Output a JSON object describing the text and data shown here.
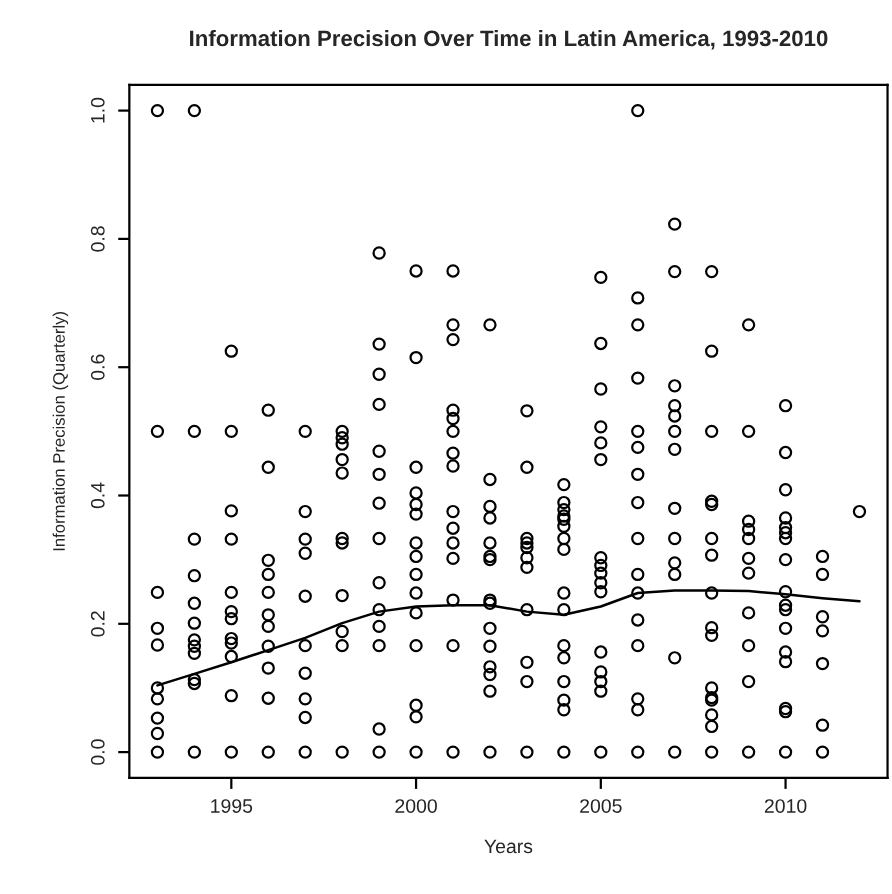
{
  "chart_data": {
    "type": "scatter",
    "title": "Information Precision Over Time in Latin America, 1993-2010",
    "xlabel": "Years",
    "ylabel": "Information Precision (Quarterly)",
    "xlim": [
      1992.24,
      2012.76
    ],
    "ylim": [
      -0.04,
      1.04
    ],
    "xticks": [
      1995,
      2000,
      2005,
      2010
    ],
    "yticks": [
      {
        "value": 0,
        "label": "0.0"
      },
      {
        "value": 0.2,
        "label": "0.2"
      },
      {
        "value": 0.4,
        "label": "0.4"
      },
      {
        "value": 0.6,
        "label": "0.6"
      },
      {
        "value": 0.8,
        "label": "0.8"
      },
      {
        "value": 1.0,
        "label": "1.0"
      }
    ],
    "grid": false,
    "legend": false,
    "series": [
      {
        "marker": "circle",
        "color": "#000000",
        "x": [
          1993,
          1993,
          1993,
          1993,
          1993,
          1993,
          1993,
          1993,
          1993,
          1993,
          1994,
          1994,
          1994,
          1994,
          1994,
          1994,
          1994,
          1994,
          1994,
          1994,
          1994,
          1994,
          1995,
          1995,
          1995,
          1995,
          1995,
          1995,
          1995,
          1995,
          1995,
          1995,
          1995,
          1995,
          1996,
          1996,
          1996,
          1996,
          1996,
          1996,
          1996,
          1996,
          1996,
          1996,
          1996,
          1997,
          1997,
          1997,
          1997,
          1997,
          1997,
          1997,
          1997,
          1997,
          1997,
          1998,
          1998,
          1998,
          1998,
          1998,
          1998,
          1998,
          1998,
          1998,
          1998,
          1998,
          1999,
          1999,
          1999,
          1999,
          1999,
          1999,
          1999,
          1999,
          1999,
          1999,
          1999,
          1999,
          1999,
          1999,
          2000,
          2000,
          2000,
          2000,
          2000,
          2000,
          2000,
          2000,
          2000,
          2000,
          2000,
          2000,
          2000,
          2000,
          2000,
          2001,
          2001,
          2001,
          2001,
          2001,
          2001,
          2001,
          2001,
          2001,
          2001,
          2001,
          2001,
          2001,
          2001,
          2001,
          2002,
          2002,
          2002,
          2002,
          2002,
          2002,
          2002,
          2002,
          2002,
          2002,
          2002,
          2002,
          2002,
          2002,
          2002,
          2003,
          2003,
          2003,
          2003,
          2003,
          2003,
          2003,
          2003,
          2003,
          2003,
          2003,
          2004,
          2004,
          2004,
          2004,
          2004,
          2004,
          2004,
          2004,
          2004,
          2004,
          2004,
          2004,
          2004,
          2004,
          2004,
          2004,
          2005,
          2005,
          2005,
          2005,
          2005,
          2005,
          2005,
          2005,
          2005,
          2005,
          2005,
          2005,
          2005,
          2005,
          2005,
          2005,
          2006,
          2006,
          2006,
          2006,
          2006,
          2006,
          2006,
          2006,
          2006,
          2006,
          2006,
          2006,
          2006,
          2006,
          2006,
          2006,
          2007,
          2007,
          2007,
          2007,
          2007,
          2007,
          2007,
          2007,
          2007,
          2007,
          2007,
          2007,
          2007,
          2008,
          2008,
          2008,
          2008,
          2008,
          2008,
          2008,
          2008,
          2008,
          2008,
          2008,
          2008,
          2008,
          2008,
          2008,
          2008,
          2009,
          2009,
          2009,
          2009,
          2009,
          2009,
          2009,
          2009,
          2009,
          2009,
          2009,
          2010,
          2010,
          2010,
          2010,
          2010,
          2010,
          2010,
          2010,
          2010,
          2010,
          2010,
          2010,
          2010,
          2010,
          2010,
          2010,
          2010,
          2011,
          2011,
          2011,
          2011,
          2011,
          2011,
          2011,
          2012
        ],
        "values": [
          1.0,
          0.5,
          0.249,
          0.193,
          0.167,
          0.1,
          0.083,
          0.053,
          0.029,
          0,
          1.0,
          0.5,
          0.332,
          0.275,
          0.232,
          0.201,
          0.175,
          0.165,
          0.154,
          0.113,
          0.107,
          0,
          0.625,
          0.5,
          0.376,
          0.332,
          0.249,
          0.219,
          0.208,
          0.177,
          0.17,
          0.149,
          0.088,
          0,
          0.533,
          0.444,
          0.299,
          0.277,
          0.249,
          0.214,
          0.196,
          0.165,
          0.131,
          0.084,
          0,
          0.5,
          0.375,
          0.332,
          0.31,
          0.243,
          0.166,
          0.123,
          0.083,
          0.054,
          0,
          0.5,
          0.49,
          0.48,
          0.456,
          0.435,
          0.333,
          0.326,
          0.244,
          0.188,
          0.166,
          0,
          0.778,
          0.636,
          0.589,
          0.542,
          0.469,
          0.433,
          0.388,
          0.333,
          0.264,
          0.222,
          0.196,
          0.166,
          0.036,
          0,
          0.75,
          0.615,
          0.444,
          0.404,
          0.386,
          0.371,
          0.326,
          0.305,
          0.277,
          0.248,
          0.217,
          0.166,
          0.073,
          0.055,
          0,
          0.75,
          0.666,
          0.643,
          0.533,
          0.52,
          0.5,
          0.466,
          0.446,
          0.375,
          0.349,
          0.326,
          0.302,
          0.237,
          0.166,
          0,
          0.666,
          0.425,
          0.383,
          0.365,
          0.326,
          0.305,
          0.3,
          0.237,
          0.232,
          0.193,
          0.165,
          0.133,
          0.121,
          0.095,
          0,
          0.532,
          0.444,
          0.333,
          0.326,
          0.319,
          0.303,
          0.288,
          0.222,
          0.14,
          0.11,
          0,
          0.417,
          0.389,
          0.378,
          0.368,
          0.363,
          0.352,
          0.333,
          0.316,
          0.248,
          0.222,
          0.166,
          0.147,
          0.11,
          0.081,
          0.066,
          0,
          0.74,
          0.637,
          0.566,
          0.507,
          0.482,
          0.456,
          0.303,
          0.291,
          0.279,
          0.264,
          0.25,
          0.156,
          0.125,
          0.11,
          0.095,
          0,
          1.0,
          0.708,
          0.666,
          0.583,
          0.5,
          0.475,
          0.433,
          0.389,
          0.333,
          0.277,
          0.248,
          0.206,
          0.166,
          0.083,
          0.066,
          0,
          0.823,
          0.749,
          0.571,
          0.54,
          0.524,
          0.5,
          0.472,
          0.38,
          0.333,
          0.295,
          0.277,
          0.147,
          0,
          0.749,
          0.625,
          0.5,
          0.391,
          0.386,
          0.333,
          0.307,
          0.248,
          0.194,
          0.182,
          0.1,
          0.085,
          0.081,
          0.058,
          0.04,
          0,
          0.666,
          0.5,
          0.36,
          0.347,
          0.333,
          0.302,
          0.279,
          0.217,
          0.166,
          0.11,
          0,
          0.54,
          0.467,
          0.409,
          0.365,
          0.35,
          0.342,
          0.333,
          0.3,
          0.25,
          0.229,
          0.222,
          0.193,
          0.156,
          0.141,
          0.068,
          0.063,
          0,
          0.305,
          0.277,
          0.211,
          0.189,
          0.138,
          0.042,
          0,
          0.375
        ]
      },
      {
        "type": "line",
        "color": "#000000",
        "marker": "none",
        "line_style": "solid",
        "x": [
          1993,
          1994,
          1995,
          1996,
          1997,
          1998,
          1999,
          2000,
          2001,
          2002,
          2003,
          2004,
          2005,
          2006,
          2007,
          2008,
          2009,
          2010,
          2011,
          2012
        ],
        "values": [
          0.104,
          0.122,
          0.14,
          0.159,
          0.178,
          0.201,
          0.219,
          0.227,
          0.229,
          0.229,
          0.219,
          0.214,
          0.227,
          0.248,
          0.252,
          0.252,
          0.251,
          0.246,
          0.24,
          0.235
        ]
      }
    ]
  }
}
